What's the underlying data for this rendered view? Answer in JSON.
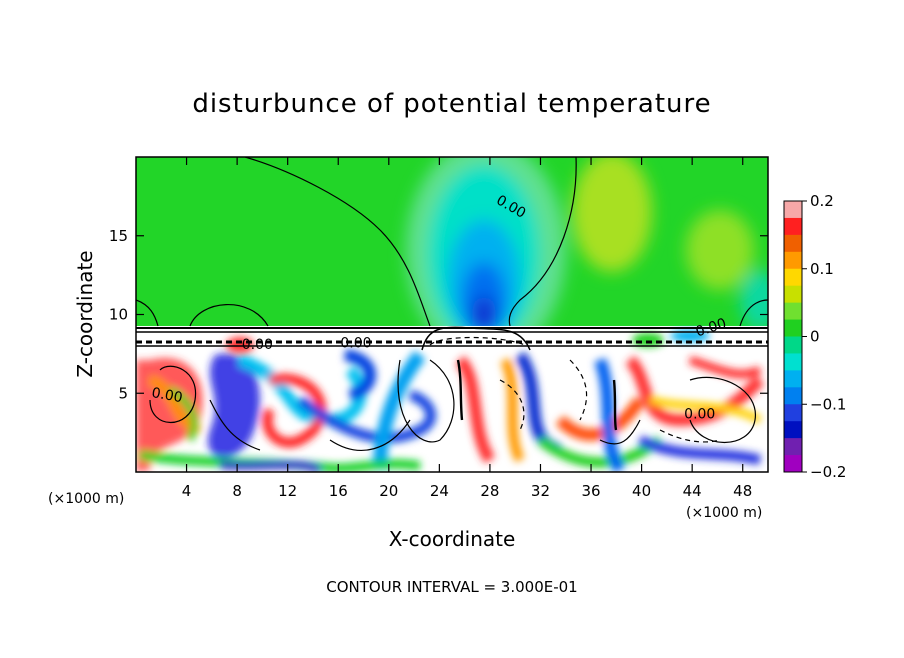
{
  "chart_data": {
    "type": "heatmap",
    "title": "disturbunce of potential temperature",
    "xlabel": "X-coordinate",
    "ylabel": "Z-coordinate",
    "x_unit": "(×1000 m)",
    "z_unit": "(×1000 m)",
    "xlim": [
      0,
      50
    ],
    "ylim": [
      0,
      20
    ],
    "x_ticks": [
      4,
      8,
      12,
      16,
      20,
      24,
      28,
      32,
      36,
      40,
      44,
      48
    ],
    "y_ticks": [
      5,
      10,
      15
    ],
    "colorbar": {
      "range": [
        -0.2,
        0.2
      ],
      "tick_values": [
        0.2,
        0.1,
        0,
        -0.1,
        -0.2
      ],
      "tick_labels": [
        "0.2",
        "0.1",
        "0",
        "−0.1",
        "−0.2"
      ],
      "colors": [
        "#f7a8a8",
        "#ff2020",
        "#f06000",
        "#ff9a00",
        "#ffd800",
        "#c8e000",
        "#70e030",
        "#20d020",
        "#00d888",
        "#00e0d0",
        "#00b0f0",
        "#0080f0",
        "#2040e0",
        "#0010c0",
        "#7020b0",
        "#a000c0"
      ]
    },
    "contour_labels": [
      {
        "text": "0.00",
        "x": 29.5,
        "z": 16.6,
        "angle": 30
      },
      {
        "text": "0.00",
        "x": 9.6,
        "z": 7.8,
        "angle": 0
      },
      {
        "text": "0.00",
        "x": 17.4,
        "z": 7.9,
        "angle": 0
      },
      {
        "text": "0.00",
        "x": 2.4,
        "z": 4.6,
        "angle": 10
      },
      {
        "text": "0.00",
        "x": 44.6,
        "z": 3.4,
        "angle": 0
      },
      {
        "text": "0.00",
        "x": 45.6,
        "z": 8.9,
        "angle": -18
      }
    ],
    "contour_interval_note": "CONTOUR INTERVAL = 3.000E-01"
  }
}
